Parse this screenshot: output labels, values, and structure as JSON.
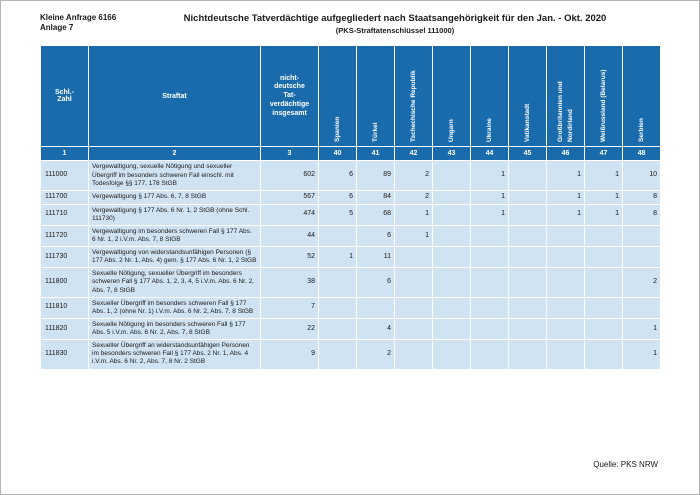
{
  "colors": {
    "header_bg": "#1a6bac",
    "row_bg": "#cfe3f3"
  },
  "page": {
    "ref_line1": "Kleine Anfrage 6166",
    "ref_line2": "Anlage 7",
    "title": "Nichtdeutsche Tatverdächtige aufgegliedert nach Staatsangehörigkeit für den Jan. - Okt. 2020",
    "subtitle": "(PKS-Straftatenschlüssel 111000)",
    "source": "Quelle: PKS NRW"
  },
  "table": {
    "headers": {
      "schl": "Schl.-\nZahl",
      "straftat": "Straftat",
      "insgesamt": "nicht-\ndeutsche\nTat-\nverdächtige\ninsgesamt",
      "countries": [
        "Spanien",
        "Türkei",
        "Tschechische Republik",
        "Ungarn",
        "Ukraine",
        "Vatikanstadt",
        "Großbritannien und Nordirland",
        "Weißrussland (Belarus)",
        "Serbien"
      ]
    },
    "column_numbers": [
      "1",
      "2",
      "3",
      "40",
      "41",
      "42",
      "43",
      "44",
      "45",
      "46",
      "47",
      "48"
    ],
    "rows": [
      {
        "schl": "111000",
        "straftat": "Vergewaltigung, sexuelle Nötigung und sexueller Übergriff im besonders schweren Fall einschl. mit Todesfolge §§ 177, 178 StGB",
        "insgesamt": "602",
        "values": [
          "6",
          "89",
          "2",
          "",
          "1",
          "",
          "1",
          "1",
          "10"
        ]
      },
      {
        "schl": "111700",
        "straftat": "Vergewaltigung § 177 Abs. 6, 7, 8 StGB",
        "insgesamt": "567",
        "values": [
          "6",
          "84",
          "2",
          "",
          "1",
          "",
          "1",
          "1",
          "8"
        ]
      },
      {
        "schl": "111710",
        "straftat": "Vergewaltigung § 177 Abs. 6 Nr. 1, 2 StGB (ohne Schl. 111730)",
        "insgesamt": "474",
        "values": [
          "5",
          "68",
          "1",
          "",
          "1",
          "",
          "1",
          "1",
          "8"
        ]
      },
      {
        "schl": "111720",
        "straftat": "Vergewaltigung im besonders schweren Fall § 177 Abs. 6 Nr. 1, 2 i.V.m. Abs. 7, 8 StGB",
        "insgesamt": "44",
        "values": [
          "",
          "6",
          "1",
          "",
          "",
          "",
          "",
          "",
          ""
        ]
      },
      {
        "schl": "111730",
        "straftat": "Vergewaltigung von widerstandsunfähigen Personen (§ 177 Abs. 2 Nr. 1, Abs. 4) gem. § 177 Abs. 6 Nr. 1, 2 StGB",
        "insgesamt": "52",
        "values": [
          "1",
          "11",
          "",
          "",
          "",
          "",
          "",
          "",
          ""
        ]
      },
      {
        "schl": "111800",
        "straftat": "Sexuelle Nötigung, sexueller Übergriff im besonders schweren Fall § 177 Abs. 1, 2, 3, 4, 5 i.V.m. Abs. 6 Nr. 2, Abs. 7, 8 StGB",
        "insgesamt": "38",
        "values": [
          "",
          "6",
          "",
          "",
          "",
          "",
          "",
          "",
          "2"
        ]
      },
      {
        "schl": "111810",
        "straftat": "Sexueller Übergriff im besonders schweren Fall § 177 Abs. 1, 2 (ohne Nr. 1) i.V.m. Abs. 6 Nr. 2, Abs. 7, 8 StGB",
        "insgesamt": "7",
        "values": [
          "",
          "",
          "",
          "",
          "",
          "",
          "",
          "",
          ""
        ]
      },
      {
        "schl": "111820",
        "straftat": "Sexuelle Nötigung im besonders schweren Fall § 177 Abs. 5 i.V.m. Abs. 6 Nr. 2, Abs. 7, 8 StGB",
        "insgesamt": "22",
        "values": [
          "",
          "4",
          "",
          "",
          "",
          "",
          "",
          "",
          "1"
        ]
      },
      {
        "schl": "111830",
        "straftat": "Sexueller Übergriff an widerstandsunfähigen Personen im besonders schweren Fall § 177 Abs. 2 Nr. 1, Abs. 4 i.V.m. Abs. 6 Nr. 2, Abs. 7, 8 Nr. 2 StGB",
        "insgesamt": "9",
        "values": [
          "",
          "2",
          "",
          "",
          "",
          "",
          "",
          "",
          "1"
        ]
      }
    ]
  }
}
